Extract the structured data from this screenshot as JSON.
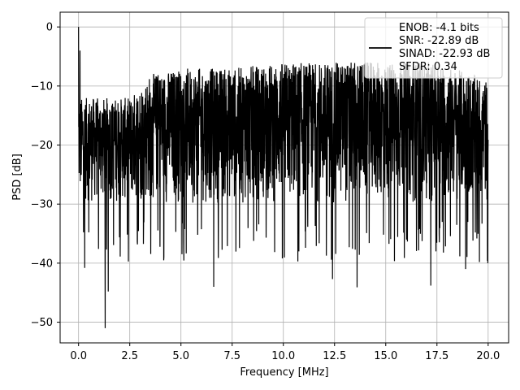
{
  "chart_data": {
    "type": "line",
    "title": "",
    "xlabel": "Frequency [MHz]",
    "ylabel": "PSD [dB]",
    "xlim": [
      -0.9,
      21.0
    ],
    "ylim": [
      -53.5,
      2.5
    ],
    "xticks": [
      0.0,
      2.5,
      5.0,
      7.5,
      10.0,
      12.5,
      15.0,
      17.5,
      20.0
    ],
    "xtick_labels": [
      "0.0",
      "2.5",
      "5.0",
      "7.5",
      "10.0",
      "12.5",
      "15.0",
      "17.5",
      "20.0"
    ],
    "yticks": [
      0,
      -10,
      -20,
      -30,
      -40,
      -50
    ],
    "ytick_labels": [
      "0",
      "−10",
      "−20",
      "−30",
      "−40",
      "−50"
    ],
    "grid": true,
    "legend_position": "top-right",
    "legend_entries": [
      "ENOB: -4.1 bits",
      "SNR: -22.89 dB",
      "SINAD: -22.93 dB",
      "SFDR: 0.34"
    ],
    "series": [
      {
        "color": "#000000",
        "note_x_range": [
          0.0,
          20.0
        ],
        "peak_points": [
          {
            "x": 0.0,
            "y": 0.0
          },
          {
            "x": 0.07,
            "y": -4.0
          },
          {
            "x": 0.12,
            "y": -20.0
          },
          {
            "x": 0.3,
            "y": -40.8
          },
          {
            "x": 1.3,
            "y": -51.0
          },
          {
            "x": 1.45,
            "y": -44.8
          },
          {
            "x": 6.6,
            "y": -44.0
          },
          {
            "x": 12.4,
            "y": -42.7
          },
          {
            "x": 13.6,
            "y": -44.1
          },
          {
            "x": 17.2,
            "y": -43.8
          },
          {
            "x": 18.9,
            "y": -41.0
          }
        ],
        "upper_envelope": [
          {
            "x": 0.0,
            "y": -12
          },
          {
            "x": 1.0,
            "y": -12
          },
          {
            "x": 2.5,
            "y": -12
          },
          {
            "x": 3.5,
            "y": -8
          },
          {
            "x": 5.0,
            "y": -7
          },
          {
            "x": 7.5,
            "y": -7
          },
          {
            "x": 10.0,
            "y": -6
          },
          {
            "x": 12.5,
            "y": -6
          },
          {
            "x": 15.0,
            "y": -6
          },
          {
            "x": 17.5,
            "y": -6
          },
          {
            "x": 20.0,
            "y": -9
          }
        ],
        "typical_lower": -30
      }
    ]
  }
}
